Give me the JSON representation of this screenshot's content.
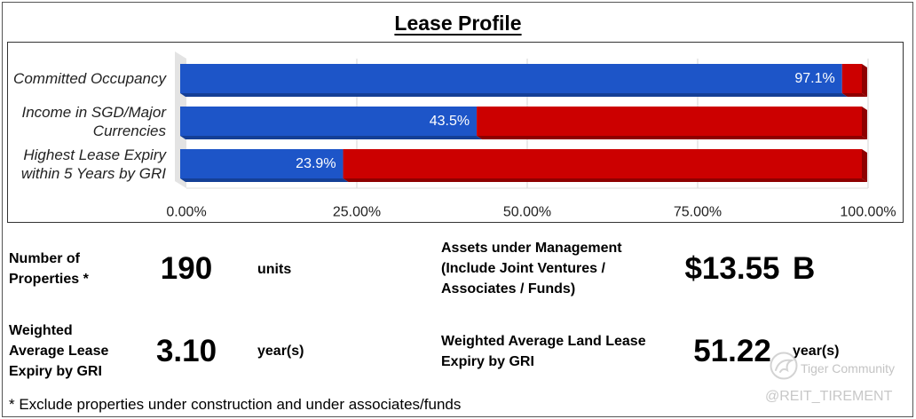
{
  "title": "Lease Profile",
  "chart_data": {
    "type": "bar",
    "orientation": "horizontal",
    "stacked": true,
    "three_d": true,
    "categories": [
      "Committed Occupancy",
      "Income in SGD/Major\nCurrencies",
      "Highest Lease Expiry\nwithin 5 Years by GRI"
    ],
    "series": [
      {
        "values": [
          97.1,
          43.5,
          23.9
        ],
        "color": "#1d55c8",
        "shade": "#143f96"
      },
      {
        "values": [
          2.9,
          56.5,
          76.1
        ],
        "color": "#cc0000",
        "shade": "#8e0000"
      }
    ],
    "data_labels": [
      "97.1%",
      "43.5%",
      "23.9%"
    ],
    "x_ticks": [
      0,
      25,
      50,
      75,
      100
    ],
    "x_tick_labels": [
      "0.00%",
      "25.00%",
      "50.00%",
      "75.00%",
      "100.00%"
    ],
    "xlim": [
      0,
      100
    ],
    "grid": true,
    "legend": "none"
  },
  "stats": [
    {
      "label": "Number of\nProperties *",
      "value": "190",
      "unit": "units"
    },
    {
      "label": "Assets under Management\n(Include Joint Ventures /\nAssociates / Funds)",
      "value": "$13.55",
      "unit": "B"
    },
    {
      "label": "Weighted\nAverage Lease\nExpiry by GRI",
      "value": "3.10",
      "unit": "year(s)"
    },
    {
      "label": "Weighted Average Land Lease\nExpiry by GRI",
      "value": "51.22",
      "unit": "year(s)"
    }
  ],
  "footnote": "* Exclude properties under construction and under associates/funds",
  "watermark": {
    "brand": "Tiger Community",
    "handle": "@REIT_TIREMENT",
    "logo_icon": "tiger-logo-icon"
  }
}
